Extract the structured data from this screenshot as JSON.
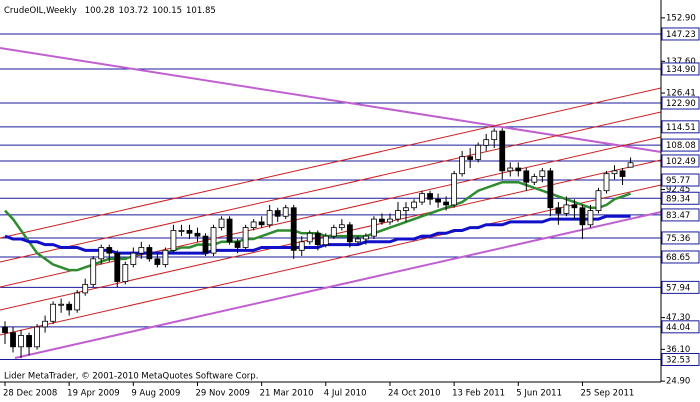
{
  "chart_data": {
    "type": "candlestick",
    "title": "CrudeOIL,Weekly",
    "footer": "Lider MetaTrader, © 2001-2010 MetaQuotes Software Corp.",
    "categories": [
      "28 Dec 2008",
      null,
      null,
      null,
      null,
      null,
      null,
      null,
      "19 Apr 2009",
      null,
      null,
      null,
      null,
      null,
      null,
      null,
      "9 Aug 2009",
      null,
      null,
      null,
      null,
      null,
      null,
      null,
      "29 Nov 2009",
      null,
      null,
      null,
      null,
      null,
      null,
      null,
      "21 Mar 2010",
      null,
      null,
      null,
      null,
      null,
      null,
      null,
      "4 Jul 2010",
      null,
      null,
      null,
      null,
      null,
      null,
      null,
      "24 Oct 2010",
      null,
      null,
      null,
      null,
      null,
      null,
      null,
      "13 Feb 2011",
      null,
      null,
      null,
      null,
      null,
      null,
      null,
      "5 Jun 2011",
      null,
      null,
      null,
      null,
      null,
      null,
      null,
      "25 Sep 2011",
      null,
      null,
      null,
      null,
      null,
      null
    ],
    "open": [
      44,
      42,
      37,
      41,
      37,
      44,
      46,
      52,
      52,
      50,
      56,
      59,
      68,
      72,
      70,
      60,
      66,
      70,
      72,
      68,
      66,
      71,
      78,
      78,
      77,
      76,
      70,
      79,
      82,
      74,
      72,
      79,
      81,
      80,
      85,
      83,
      86,
      71,
      74,
      77,
      73,
      76,
      79,
      80,
      74,
      75,
      76,
      82,
      81,
      82,
      85,
      86,
      88,
      91,
      89,
      88,
      87,
      98,
      104,
      103,
      108,
      110,
      113,
      99,
      100,
      99,
      95,
      97,
      99,
      86,
      84,
      87,
      86,
      80,
      85,
      92,
      98,
      99,
      100.28
    ],
    "high": [
      46,
      44,
      43,
      42,
      45,
      48,
      53,
      54,
      53,
      57,
      61,
      69,
      73,
      73,
      71,
      67,
      72,
      74,
      73,
      70,
      72,
      80,
      80,
      80,
      79,
      77,
      80,
      83,
      83,
      75,
      80,
      82,
      83,
      87,
      86,
      87,
      87,
      76,
      78,
      78,
      77,
      80,
      82,
      81,
      76,
      77,
      83,
      84,
      84,
      88,
      88,
      89,
      92,
      92,
      91,
      90,
      99,
      106,
      107,
      109,
      112,
      114,
      114,
      102,
      102,
      100,
      98,
      100,
      100,
      88,
      90,
      89,
      87,
      87,
      93,
      99,
      101,
      100,
      103.72
    ],
    "low": [
      38,
      35,
      33,
      34,
      36,
      42,
      45,
      49,
      48,
      49,
      55,
      58,
      66,
      67,
      58,
      59,
      65,
      68,
      67,
      65,
      65,
      70,
      76,
      75,
      74,
      69,
      69,
      78,
      73,
      70,
      71,
      78,
      79,
      79,
      81,
      82,
      68,
      69,
      73,
      71,
      72,
      75,
      78,
      72,
      73,
      73,
      75,
      80,
      80,
      81,
      81,
      85,
      87,
      87,
      86,
      85,
      86,
      97,
      100,
      102,
      106,
      107,
      96,
      97,
      97,
      92,
      94,
      95,
      83,
      80,
      83,
      82,
      75,
      79,
      84,
      91,
      96,
      94,
      100.15
    ],
    "close": [
      42,
      37,
      41,
      37,
      44,
      46,
      52,
      52,
      50,
      56,
      59,
      68,
      72,
      70,
      60,
      66,
      70,
      72,
      68,
      66,
      71,
      78,
      78,
      77,
      76,
      70,
      79,
      82,
      74,
      72,
      79,
      81,
      80,
      85,
      83,
      86,
      71,
      74,
      77,
      73,
      76,
      79,
      80,
      74,
      75,
      76,
      82,
      81,
      82,
      85,
      86,
      88,
      91,
      89,
      88,
      87,
      98,
      104,
      103,
      108,
      110,
      113,
      99,
      100,
      99,
      95,
      97,
      99,
      86,
      84,
      87,
      86,
      80,
      85,
      92,
      98,
      99,
      97,
      101.85
    ],
    "candle_color": "#000000",
    "moving_averages": [
      {
        "color": "#2e8b2e",
        "values": [
          85,
          82,
          78,
          74,
          70,
          68,
          66,
          65,
          64,
          64,
          65,
          66,
          67,
          68,
          68,
          68,
          69,
          70,
          70,
          70,
          70,
          71,
          72,
          72,
          73,
          73,
          73,
          74,
          74,
          74,
          75,
          75,
          76,
          77,
          78,
          78,
          78,
          77,
          77,
          77,
          76,
          76,
          76,
          76,
          76,
          76,
          77,
          78,
          79,
          80,
          81,
          82,
          83,
          84,
          85,
          86,
          87,
          88,
          90,
          92,
          93,
          94,
          95,
          95,
          95,
          94,
          93,
          92,
          91,
          90,
          89,
          88,
          87,
          86,
          86,
          87,
          89,
          90,
          91
        ]
      },
      {
        "color": "#1010c8",
        "values": [
          76,
          75,
          75,
          74,
          74,
          73,
          73,
          72,
          72,
          72,
          71,
          71,
          71,
          71,
          70,
          70,
          70,
          70,
          70,
          70,
          70,
          70,
          70,
          70,
          70,
          70,
          71,
          71,
          71,
          71,
          71,
          71,
          72,
          72,
          72,
          72,
          72,
          72,
          72,
          72,
          73,
          73,
          73,
          73,
          73,
          74,
          74,
          74,
          74,
          75,
          75,
          75,
          76,
          76,
          77,
          77,
          78,
          78,
          79,
          79,
          80,
          80,
          80,
          81,
          81,
          81,
          81,
          81,
          82,
          82,
          82,
          82,
          82,
          82,
          82,
          83,
          83,
          83,
          83
        ]
      }
    ],
    "ylim": [
      24.6,
      159.2
    ],
    "yticks": [
      {
        "value": 152.9,
        "label": "152.90"
      },
      {
        "value": 137.6,
        "label": "137.60"
      },
      126.41,
      92.45,
      {
        "value": 47.3,
        "label": "47.30"
      },
      {
        "value": 36.1,
        "label": "36.10"
      },
      {
        "value": 24.9,
        "label": "24.90"
      }
    ],
    "levels": [
      147.23,
      {
        "value": 134.9,
        "label": "134.90"
      },
      {
        "value": 122.9,
        "label": "122.90"
      },
      114.51,
      108.08,
      102.49,
      95.77,
      89.34,
      83.47,
      75.36,
      68.65,
      57.94,
      44.04,
      32.53
    ],
    "level_color": "#1a1a9c",
    "grid": false
  }
}
